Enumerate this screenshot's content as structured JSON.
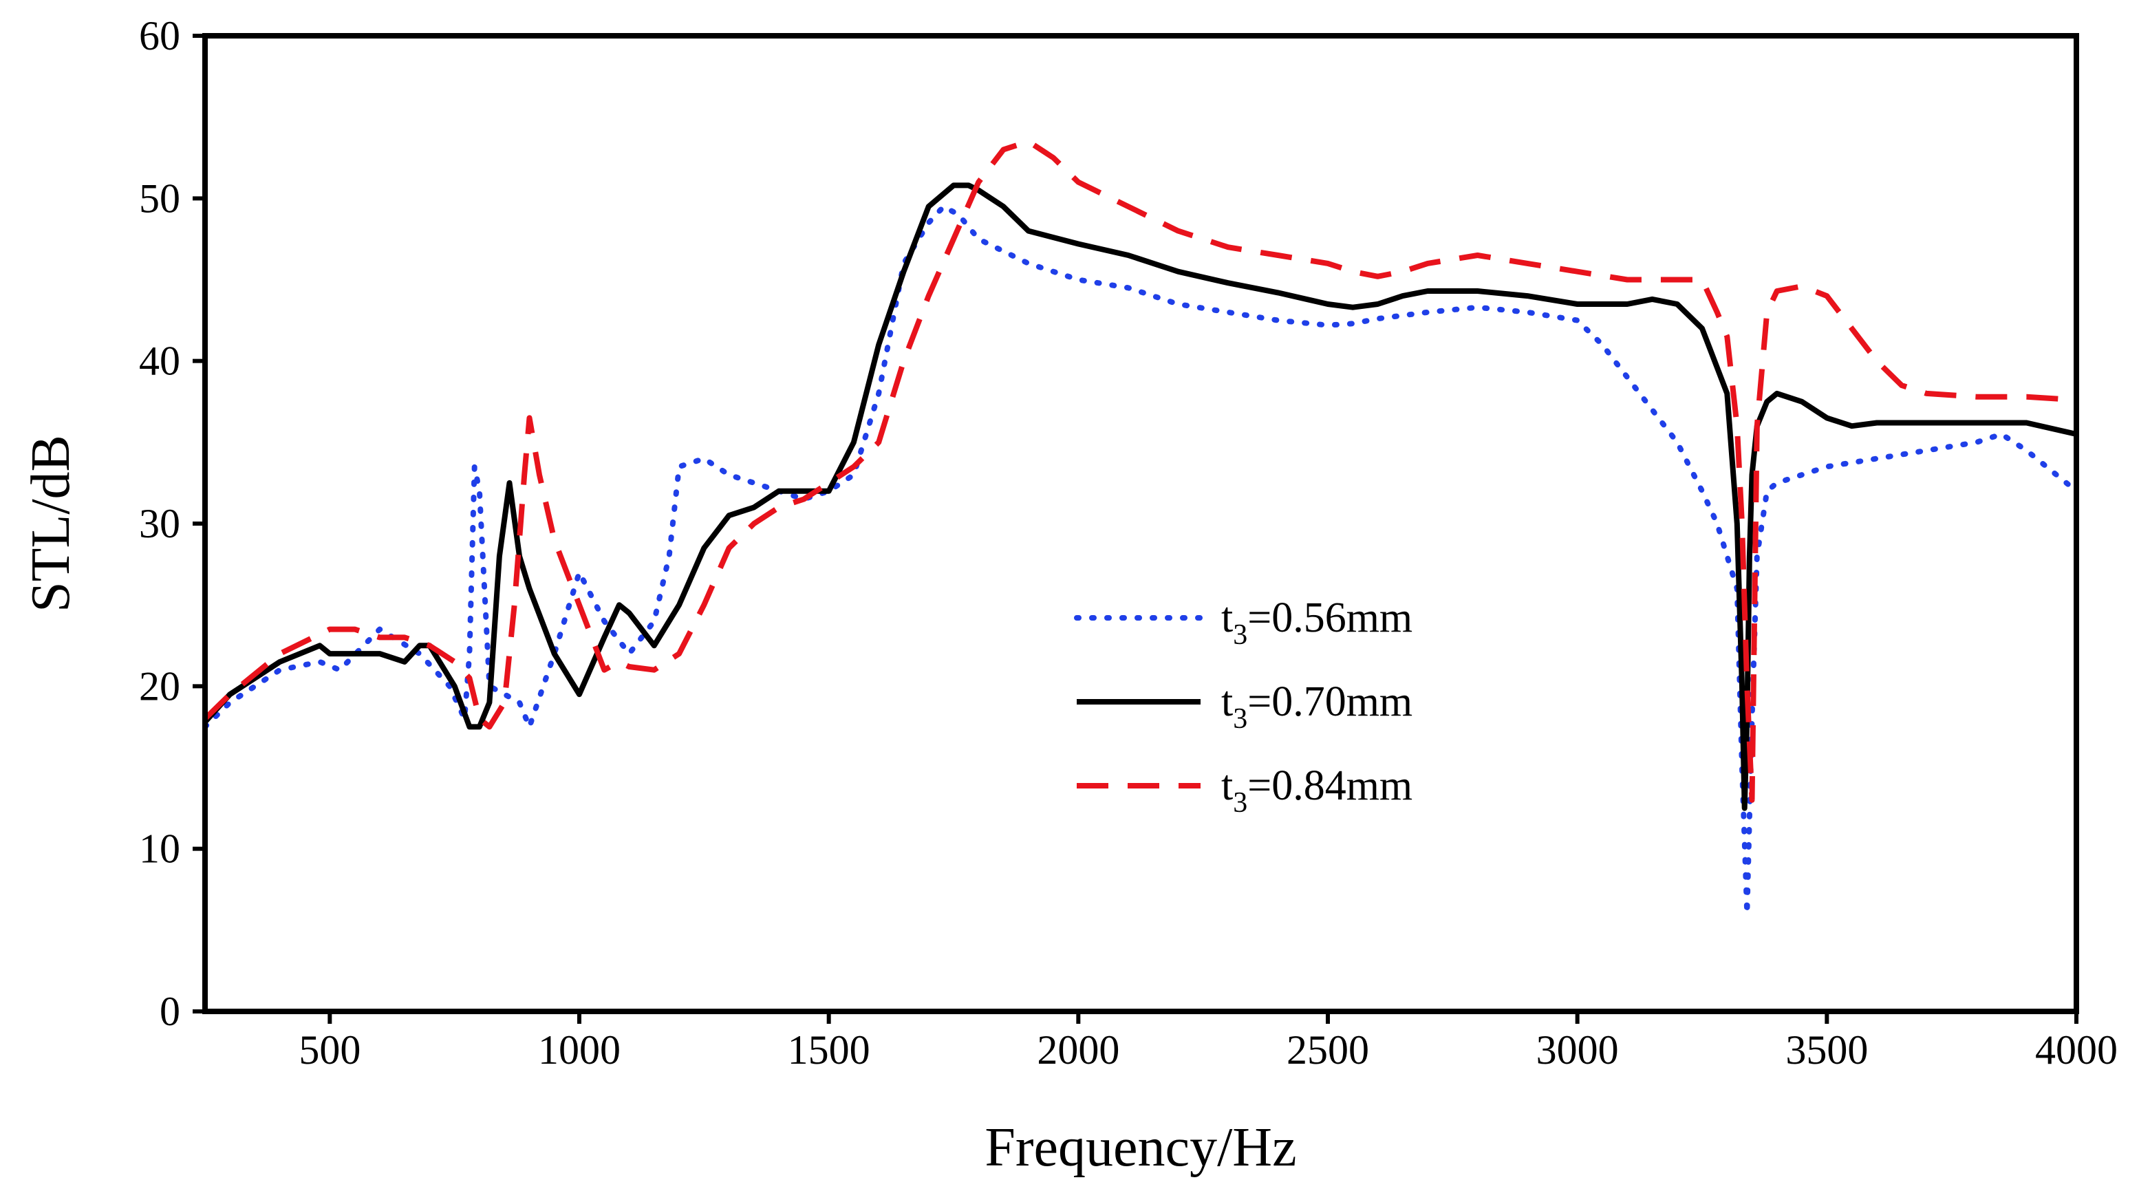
{
  "chart_data": {
    "type": "line",
    "xlabel": "Frequency/Hz",
    "ylabel": "STL/dB",
    "xlim": [
      250,
      4000
    ],
    "ylim": [
      0,
      60
    ],
    "xticks": [
      500,
      1000,
      1500,
      2000,
      2500,
      3000,
      3500,
      4000
    ],
    "yticks": [
      0,
      10,
      20,
      30,
      40,
      50,
      60
    ],
    "xtick_labels": [
      "500",
      "1000",
      "1500",
      "2000",
      "2500",
      "3000",
      "3500",
      "4000"
    ],
    "ytick_labels": [
      "0",
      "10",
      "20",
      "30",
      "40",
      "50",
      "60"
    ],
    "grid": false,
    "legend_position": "center-right",
    "series": [
      {
        "name": "t3=0.56mm",
        "label_main": "t",
        "label_sub": "3",
        "label_rest": "=0.56mm",
        "color": "#1f3fe8",
        "style": "dotted",
        "x": [
          250,
          300,
          400,
          480,
          520,
          600,
          680,
          740,
          770,
          780,
          790,
          800,
          820,
          850,
          880,
          900,
          950,
          1000,
          1050,
          1100,
          1150,
          1180,
          1200,
          1250,
          1300,
          1400,
          1450,
          1500,
          1550,
          1600,
          1650,
          1700,
          1730,
          1760,
          1800,
          1900,
          2000,
          2100,
          2200,
          2300,
          2400,
          2500,
          2550,
          2600,
          2700,
          2800,
          2900,
          3000,
          3050,
          3100,
          3200,
          3250,
          3280,
          3300,
          3320,
          3330,
          3340,
          3350,
          3360,
          3380,
          3400,
          3500,
          3600,
          3700,
          3800,
          3850,
          3900,
          4000
        ],
        "y": [
          17.5,
          19,
          21,
          21.5,
          21,
          23.5,
          22,
          20,
          18,
          22,
          33.5,
          32,
          20,
          19.5,
          19,
          17.5,
          22,
          27,
          24,
          22,
          24,
          28,
          33.5,
          34,
          33,
          32,
          31.5,
          32,
          33,
          38,
          46,
          48.5,
          49.5,
          49,
          47.5,
          46,
          45,
          44.5,
          43.5,
          43,
          42.5,
          42.2,
          42.3,
          42.6,
          43,
          43.3,
          43,
          42.5,
          41,
          39,
          35,
          32,
          30,
          28,
          26,
          15,
          6,
          18,
          28,
          32,
          32.5,
          33.5,
          34,
          34.5,
          35,
          35.5,
          34.5,
          32
        ]
      },
      {
        "name": "t3=0.70mm",
        "label_main": "t",
        "label_sub": "3",
        "label_rest": "=0.70mm",
        "color": "#000000",
        "style": "solid",
        "x": [
          250,
          300,
          400,
          480,
          500,
          550,
          600,
          650,
          680,
          700,
          750,
          780,
          800,
          820,
          840,
          860,
          880,
          900,
          950,
          1000,
          1050,
          1080,
          1100,
          1150,
          1200,
          1250,
          1300,
          1350,
          1400,
          1450,
          1500,
          1550,
          1600,
          1650,
          1700,
          1750,
          1780,
          1800,
          1850,
          1900,
          2000,
          2100,
          2200,
          2300,
          2400,
          2500,
          2550,
          2600,
          2650,
          2700,
          2800,
          2900,
          3000,
          3050,
          3100,
          3150,
          3200,
          3250,
          3300,
          3320,
          3330,
          3335,
          3340,
          3345,
          3350,
          3360,
          3380,
          3400,
          3450,
          3500,
          3550,
          3600,
          3650,
          3700,
          3800,
          3900,
          4000
        ],
        "y": [
          17.8,
          19.5,
          21.5,
          22.5,
          22,
          22,
          22,
          21.5,
          22.5,
          22.5,
          20,
          17.5,
          17.5,
          19,
          28,
          32.5,
          28,
          26,
          22,
          19.5,
          23,
          25,
          24.5,
          22.5,
          25,
          28.5,
          30.5,
          31,
          32,
          32,
          32,
          35,
          41,
          45.5,
          49.5,
          50.8,
          50.8,
          50.5,
          49.5,
          48,
          47.2,
          46.5,
          45.5,
          44.8,
          44.2,
          43.5,
          43.3,
          43.5,
          44,
          44.3,
          44.3,
          44,
          43.5,
          43.5,
          43.5,
          43.8,
          43.5,
          42,
          38,
          30,
          20,
          12.5,
          18,
          28,
          33,
          36,
          37.5,
          38,
          37.5,
          36.5,
          36,
          36.2,
          36.2,
          36.2,
          36.2,
          36.2,
          35.5
        ]
      },
      {
        "name": "t3=0.84mm",
        "label_main": "t",
        "label_sub": "3",
        "label_rest": "=0.84mm",
        "color": "#e8131c",
        "style": "dashed",
        "x": [
          250,
          300,
          400,
          500,
          550,
          600,
          650,
          700,
          750,
          780,
          800,
          820,
          850,
          870,
          890,
          900,
          920,
          950,
          1000,
          1050,
          1080,
          1100,
          1150,
          1200,
          1250,
          1300,
          1350,
          1400,
          1450,
          1500,
          1550,
          1600,
          1650,
          1700,
          1750,
          1800,
          1850,
          1900,
          1950,
          2000,
          2100,
          2200,
          2300,
          2400,
          2500,
          2550,
          2600,
          2650,
          2700,
          2800,
          2900,
          3000,
          3100,
          3200,
          3250,
          3280,
          3300,
          3320,
          3330,
          3340,
          3350,
          3360,
          3380,
          3400,
          3450,
          3500,
          3550,
          3600,
          3650,
          3700,
          3800,
          3900,
          4000
        ],
        "y": [
          18,
          19.5,
          22,
          23.5,
          23.5,
          23,
          23,
          22.5,
          21.5,
          20.5,
          18,
          17.5,
          19,
          25,
          33,
          36.5,
          33,
          29,
          25,
          21,
          21.5,
          21.2,
          21,
          22,
          25,
          28.5,
          30,
          31,
          31.5,
          32.5,
          33.5,
          35,
          40,
          44,
          47.5,
          51,
          53,
          53.5,
          52.5,
          51,
          49.5,
          48,
          47,
          46.5,
          46,
          45.5,
          45.2,
          45.5,
          46,
          46.5,
          46,
          45.5,
          45,
          45,
          45,
          43,
          41.5,
          36,
          30,
          20,
          13,
          36,
          43,
          44.3,
          44.6,
          44,
          42,
          40,
          38.5,
          38,
          37.8,
          37.8,
          37.6
        ]
      }
    ]
  }
}
